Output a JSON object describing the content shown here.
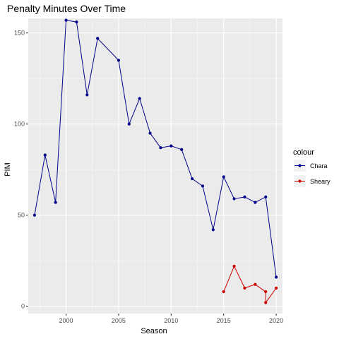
{
  "chart_data": {
    "type": "line",
    "title": "Penalty Minutes Over Time",
    "xlabel": "Season",
    "ylabel": "PIM",
    "xlim": [
      1996.4,
      2020.6
    ],
    "ylim": [
      -4,
      158
    ],
    "xticks": [
      2000,
      2005,
      2010,
      2015,
      2020
    ],
    "xtick_labels": [
      "2000",
      "2005",
      "2010",
      "2015",
      "2020"
    ],
    "yticks": [
      0,
      50,
      100,
      150
    ],
    "ytick_labels": [
      "0",
      "50",
      "100",
      "150"
    ],
    "grid": true,
    "background": "#ebebeb",
    "legend": {
      "title": "colour",
      "position": "right"
    },
    "series": [
      {
        "name": "Chara",
        "color": "#00008b",
        "points": [
          [
            1997,
            50
          ],
          [
            1998,
            83
          ],
          [
            1999,
            57
          ],
          [
            2000,
            157
          ],
          [
            2001,
            156
          ],
          [
            2002,
            116
          ],
          [
            2003,
            147
          ],
          [
            2005,
            135
          ],
          [
            2006,
            100
          ],
          [
            2007,
            114
          ],
          [
            2008,
            95
          ],
          [
            2009,
            87
          ],
          [
            2010,
            88
          ],
          [
            2011,
            86
          ],
          [
            2012,
            70
          ],
          [
            2013,
            66
          ],
          [
            2014,
            42
          ],
          [
            2015,
            71
          ],
          [
            2016,
            59
          ],
          [
            2017,
            60
          ],
          [
            2018,
            57
          ],
          [
            2019,
            60
          ],
          [
            2020,
            16
          ]
        ]
      },
      {
        "name": "Sheary",
        "color": "#cd0000",
        "points": [
          [
            2015,
            8
          ],
          [
            2016,
            22
          ],
          [
            2017,
            10
          ],
          [
            2018,
            12
          ],
          [
            2019,
            8
          ],
          [
            2019,
            2
          ],
          [
            2020,
            10
          ]
        ]
      }
    ]
  }
}
